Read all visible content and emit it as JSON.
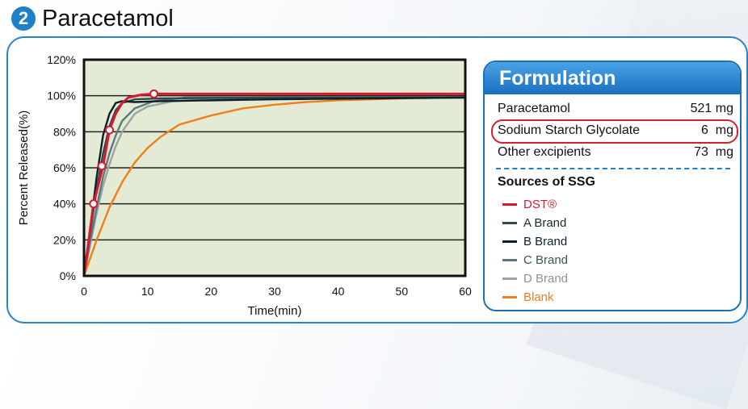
{
  "badge_number": "2",
  "title": "Paracetamol",
  "formulation": {
    "heading": "Formulation",
    "ingredients": [
      {
        "name": "Paracetamol",
        "amount": "521 mg"
      },
      {
        "name": "Sodium Starch Glycolate",
        "amount": "6  mg",
        "highlighted": true
      },
      {
        "name": "Other excipients",
        "amount": "73  mg"
      }
    ],
    "sources_title": "Sources of SSG"
  },
  "colors": {
    "badge": "#1f7fc9",
    "frame": "#2a82c9",
    "highlight": "#d5202f",
    "plot_bg": "#e4ebd4"
  },
  "chart_data": {
    "type": "line",
    "xlabel": "Time(min)",
    "ylabel": "Percent Released(%)",
    "xlim": [
      0,
      60
    ],
    "ylim": [
      0,
      120
    ],
    "x_ticks": [
      "0",
      "10",
      "20",
      "30",
      "40",
      "50",
      "60"
    ],
    "y_ticks": [
      "0%",
      "20%",
      "40%",
      "60%",
      "80%",
      "100%",
      "120%"
    ],
    "grid": "horizontal",
    "legend_placement": "right panel",
    "series": [
      {
        "name": "DST®",
        "color": "#d7192f",
        "markers": true,
        "points": [
          [
            0,
            0
          ],
          [
            1.5,
            40
          ],
          [
            3,
            61
          ],
          [
            4,
            81
          ],
          [
            5,
            90
          ],
          [
            6,
            96
          ],
          [
            7,
            99
          ],
          [
            9,
            100.5
          ],
          [
            11,
            101
          ],
          [
            20,
            101
          ],
          [
            40,
            101
          ],
          [
            60,
            101
          ]
        ],
        "marker_points": [
          [
            1.5,
            40
          ],
          [
            2.8,
            61
          ],
          [
            4,
            81
          ],
          [
            11,
            101
          ]
        ]
      },
      {
        "name": "A Brand",
        "color": "#2e4a4c",
        "points": [
          [
            0,
            0
          ],
          [
            1,
            25
          ],
          [
            2,
            48
          ],
          [
            3,
            68
          ],
          [
            4,
            83
          ],
          [
            5,
            92
          ],
          [
            6,
            96
          ],
          [
            8,
            98
          ],
          [
            12,
            98.5
          ],
          [
            30,
            99
          ],
          [
            60,
            99
          ]
        ]
      },
      {
        "name": "B Brand",
        "color": "#0f1f29",
        "points": [
          [
            0,
            0
          ],
          [
            1,
            27
          ],
          [
            2,
            55
          ],
          [
            3,
            78
          ],
          [
            4,
            90
          ],
          [
            5,
            96
          ],
          [
            6,
            97
          ],
          [
            8,
            96.5
          ],
          [
            12,
            97
          ],
          [
            30,
            98
          ],
          [
            60,
            99
          ]
        ]
      },
      {
        "name": "C Brand",
        "color": "#5c7a7c",
        "points": [
          [
            0,
            0
          ],
          [
            1,
            20
          ],
          [
            2,
            38
          ],
          [
            3,
            55
          ],
          [
            4,
            68
          ],
          [
            5,
            78
          ],
          [
            6,
            86
          ],
          [
            8,
            93
          ],
          [
            11,
            97
          ],
          [
            16,
            99
          ],
          [
            30,
            99
          ],
          [
            60,
            99
          ]
        ]
      },
      {
        "name": "D Brand",
        "color": "#9aa3a5",
        "points": [
          [
            0,
            0
          ],
          [
            1,
            18
          ],
          [
            2,
            35
          ],
          [
            3,
            50
          ],
          [
            4,
            62
          ],
          [
            5,
            72
          ],
          [
            6,
            80
          ],
          [
            8,
            90
          ],
          [
            10,
            94
          ],
          [
            14,
            97
          ],
          [
            20,
            98
          ],
          [
            40,
            99
          ],
          [
            60,
            99
          ]
        ]
      },
      {
        "name": "Blank",
        "color": "#ef7f1a",
        "points": [
          [
            0,
            0
          ],
          [
            2,
            20
          ],
          [
            4,
            38
          ],
          [
            6,
            52
          ],
          [
            8,
            63
          ],
          [
            10,
            71
          ],
          [
            12,
            77
          ],
          [
            15,
            84
          ],
          [
            20,
            89
          ],
          [
            25,
            93
          ],
          [
            30,
            95
          ],
          [
            35,
            96.5
          ],
          [
            40,
            97.5
          ],
          [
            50,
            98.5
          ],
          [
            60,
            99
          ]
        ]
      }
    ]
  }
}
